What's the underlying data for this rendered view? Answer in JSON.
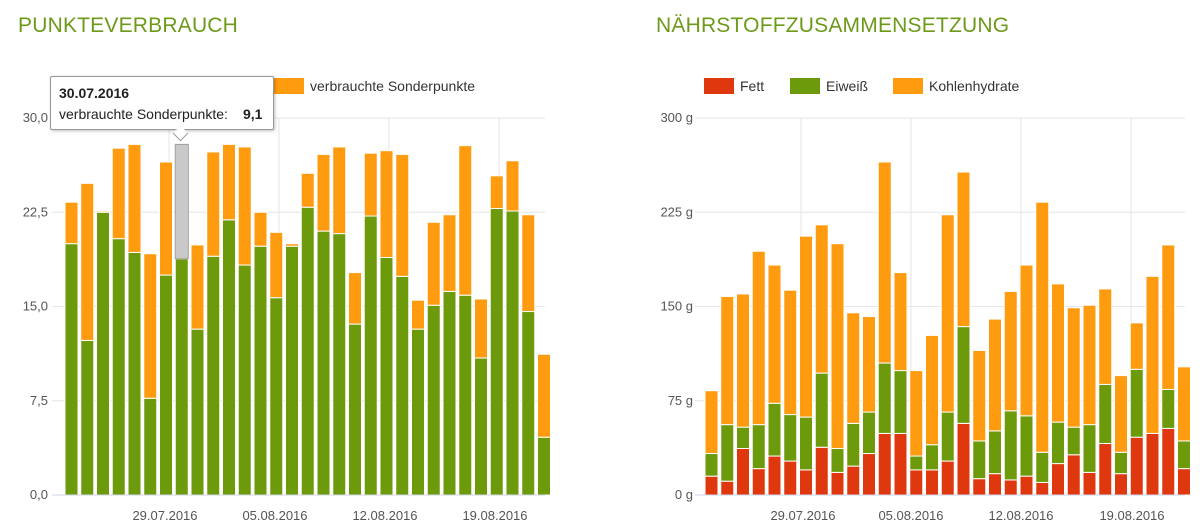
{
  "panels": {
    "left_title": "PUNKTEVERBRAUCH",
    "right_title": "NÄHRSTOFFZUSAMMENSETZUNG"
  },
  "tooltip": {
    "date": "30.07.2016",
    "label": "verbrauchte Sonderpunkte:",
    "value": "9,1"
  },
  "colors": {
    "green": "#6d9a0a",
    "orange": "#ff9b0f",
    "red": "#e0380e",
    "title": "#6d9a1a",
    "grid": "#e6e6e6"
  },
  "chart_data": [
    {
      "type": "bar",
      "stacked": true,
      "title": "PUNKTEVERBRAUCH",
      "x_tick_labels": [
        "29.07.2016",
        "05.08.2016",
        "12.08.2016",
        "19.08.2016"
      ],
      "y_tick_labels": [
        "0,0",
        "7,5",
        "15,0",
        "22,5",
        "30,0"
      ],
      "ylim": [
        0,
        30
      ],
      "grid": true,
      "legend_position": "top",
      "series": [
        {
          "key": "green",
          "values": [
            20.0,
            12.3,
            22.5,
            20.4,
            19.3,
            7.7,
            17.5,
            18.8,
            13.2,
            19.0,
            21.9,
            18.3,
            19.8,
            15.7,
            19.8,
            22.9,
            21.0,
            20.8,
            13.6,
            22.2,
            18.9,
            17.4,
            13.2,
            15.1,
            16.2,
            15.9,
            10.9,
            22.8,
            22.6,
            14.6,
            4.6
          ]
        },
        {
          "key": "orange",
          "name": "verbrauchte Sonderpunkte",
          "values": [
            3.3,
            12.5,
            0.1,
            7.2,
            8.6,
            11.5,
            9.0,
            9.1,
            6.7,
            8.3,
            6.0,
            9.4,
            2.7,
            5.2,
            0.2,
            2.7,
            6.1,
            6.9,
            4.1,
            5.0,
            8.5,
            9.7,
            2.3,
            6.6,
            6.1,
            11.9,
            4.7,
            2.6,
            4.0,
            7.7,
            6.6
          ]
        }
      ]
    },
    {
      "type": "bar",
      "stacked": true,
      "title": "NÄHRSTOFFZUSAMMENSETZUNG",
      "x_tick_labels": [
        "29.07.2016",
        "05.08.2016",
        "12.08.2016",
        "19.08.2016"
      ],
      "y_tick_labels": [
        "0 g",
        "75 g",
        "150 g",
        "225 g",
        "300 g"
      ],
      "ylim": [
        0,
        300
      ],
      "grid": true,
      "legend_position": "top-left",
      "series": [
        {
          "key": "red",
          "name": "Fett",
          "values": [
            15,
            11,
            37,
            21,
            31,
            27,
            20,
            38,
            18,
            23,
            33,
            49,
            49,
            20,
            20,
            27,
            57,
            13,
            17,
            12,
            15,
            10,
            25,
            32,
            18,
            41,
            17,
            46,
            49,
            53,
            21
          ]
        },
        {
          "key": "green",
          "name": "Eiweiß",
          "values": [
            18,
            45,
            17,
            35,
            42,
            37,
            42,
            59,
            19,
            34,
            33,
            56,
            50,
            11,
            20,
            39,
            77,
            30,
            34,
            55,
            48,
            24,
            33,
            22,
            38,
            47,
            17,
            54,
            0,
            31,
            22
          ]
        },
        {
          "key": "orange",
          "name": "Kohlenhydrate",
          "values": [
            50,
            102,
            106,
            138,
            110,
            99,
            144,
            118,
            163,
            88,
            76,
            160,
            78,
            68,
            87,
            157,
            123,
            72,
            89,
            95,
            120,
            199,
            110,
            95,
            95,
            76,
            61,
            37,
            125,
            115,
            59
          ]
        }
      ]
    }
  ]
}
